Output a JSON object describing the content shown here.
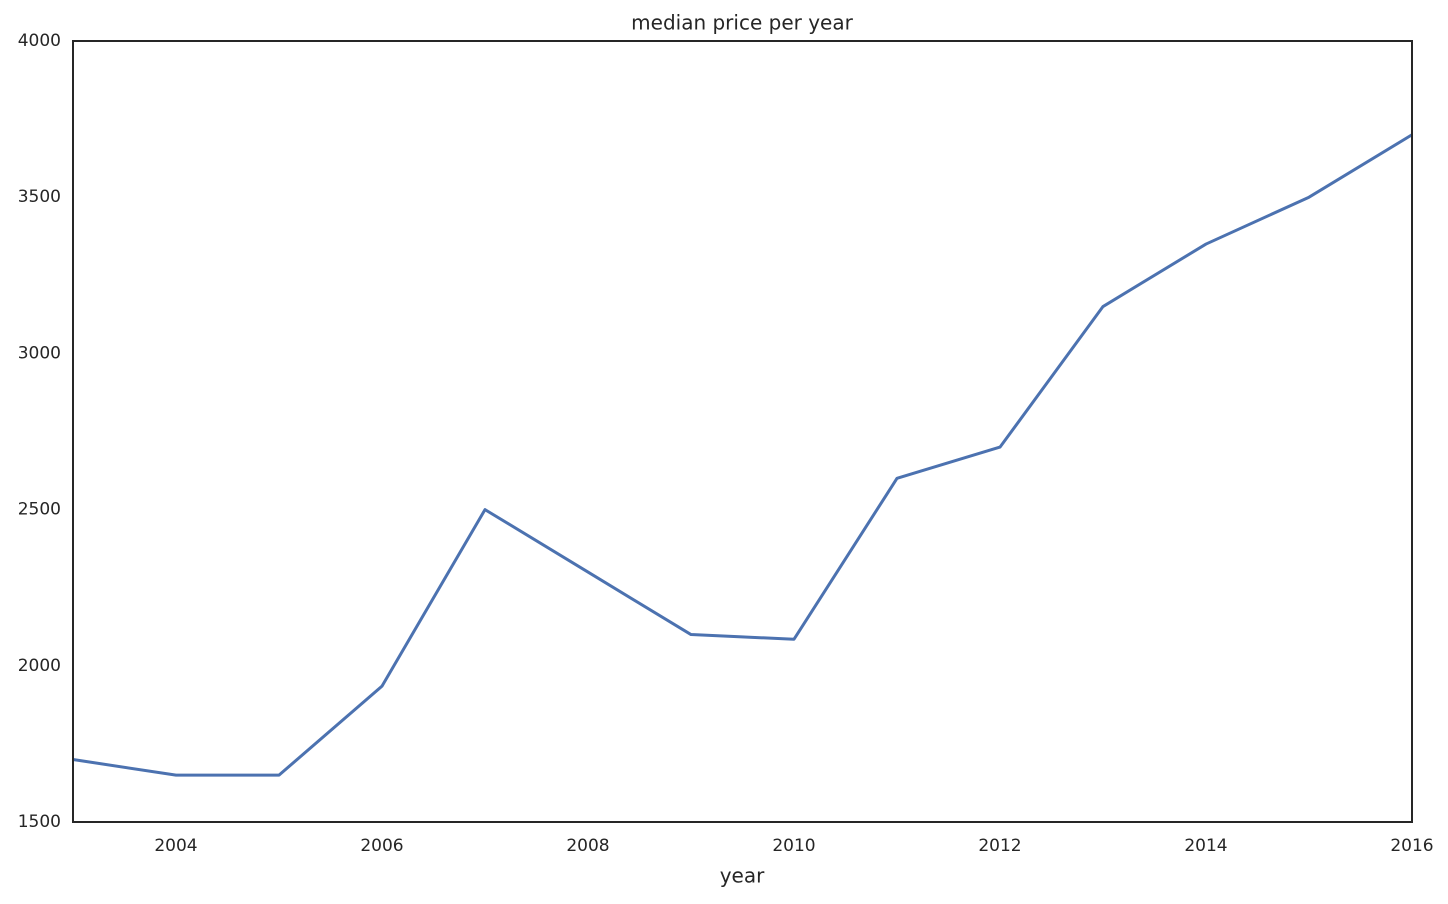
{
  "chart_data": {
    "type": "line",
    "title": "median price per year",
    "x_label": "year",
    "x": [
      2003,
      2004,
      2005,
      2006,
      2007,
      2008,
      2009,
      2010,
      2011,
      2012,
      2013,
      2014,
      2015,
      2016
    ],
    "series": [
      {
        "color": "#4c72b0",
        "values": [
          1700,
          1650,
          1650,
          1935,
          2500,
          2300,
          2100,
          2085,
          2600,
          2700,
          3150,
          3350,
          3500,
          3700
        ]
      }
    ],
    "xlim": [
      2003,
      2016
    ],
    "xticks": [
      2004,
      2006,
      2008,
      2010,
      2012,
      2014,
      2016
    ],
    "ylim": [
      1500,
      4000
    ],
    "yticks": [
      1500,
      2000,
      2500,
      3000,
      3500,
      4000
    ],
    "grid": false
  }
}
